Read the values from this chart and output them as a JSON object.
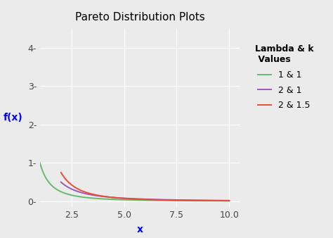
{
  "title": "Pareto Distribution Plots",
  "xlabel": "x",
  "ylabel": "f(x)",
  "xlim": [
    1.0,
    10.5
  ],
  "ylim": [
    -0.15,
    4.5
  ],
  "x_ticks": [
    2.5,
    5.0,
    7.5,
    10.0
  ],
  "y_ticks": [
    0,
    1,
    2,
    3,
    4
  ],
  "background_color": "#EBEBEB",
  "grid_color": "#FFFFFF",
  "curves": [
    {
      "lambda": 1,
      "k": 1,
      "color": "#66BB6A",
      "label": "1 & 1",
      "x_start": 1.0
    },
    {
      "lambda": 2,
      "k": 1,
      "color": "#9B59B6",
      "label": "2 & 1",
      "x_start": 2.0
    },
    {
      "lambda": 2,
      "k": 1.5,
      "color": "#E74C3C",
      "label": "2 & 1.5",
      "x_start": 2.0
    }
  ],
  "legend_title": "Lambda & k\n Values",
  "title_fontsize": 11,
  "label_fontsize": 10,
  "tick_fontsize": 9,
  "legend_fontsize": 9,
  "axis_label_color": "#0000FF",
  "title_color": "#000000",
  "line_width": 1.4
}
